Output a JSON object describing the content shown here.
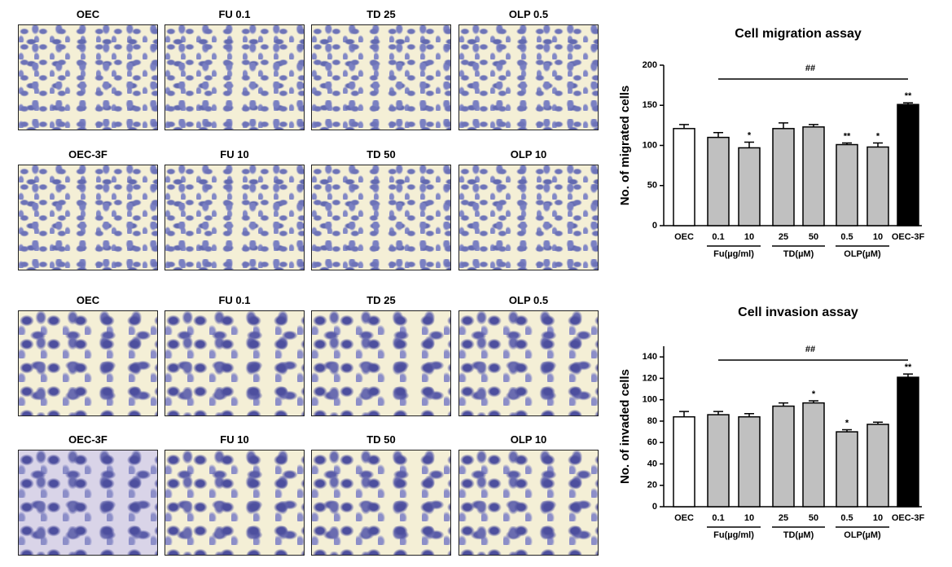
{
  "micrographs": {
    "migration": [
      "OEC",
      "FU 0.1",
      "TD 25",
      "OLP 0.5",
      "OEC-3F",
      "FU 10",
      "TD 50",
      "OLP 10"
    ],
    "invasion": [
      "OEC",
      "FU 0.1",
      "TD 25",
      "OLP 0.5",
      "OEC-3F",
      "FU 10",
      "TD 50",
      "OLP 10"
    ]
  },
  "chart_data": [
    {
      "type": "bar",
      "title": "Cell migration assay",
      "y_label": "No. of migrated cells",
      "categories": [
        "OEC",
        "0.1",
        "10",
        "25",
        "50",
        "0.5",
        "10",
        "OEC-3F"
      ],
      "values": [
        121,
        110,
        97,
        121,
        123,
        101,
        98,
        151
      ],
      "errors": [
        5,
        6,
        7,
        7,
        3,
        2,
        5,
        2
      ],
      "stars": [
        null,
        null,
        "*",
        null,
        null,
        "**",
        "*",
        "**"
      ],
      "colors": [
        "#ffffff",
        "#c0c0c0",
        "#c0c0c0",
        "#c0c0c0",
        "#c0c0c0",
        "#c0c0c0",
        "#c0c0c0",
        "#000000"
      ],
      "group_labels": [
        "Fu(µg/ml)",
        "TD(µM)",
        "OLP(µM)"
      ],
      "significance": "##",
      "ylim": [
        0,
        200
      ],
      "yticks": [
        0,
        50,
        100,
        150,
        200
      ]
    },
    {
      "type": "bar",
      "title": "Cell invasion assay",
      "y_label": "No. of invaded cells",
      "categories": [
        "OEC",
        "0.1",
        "10",
        "25",
        "50",
        "0.5",
        "10",
        "OEC-3F"
      ],
      "values": [
        84,
        86,
        84,
        94,
        97,
        70,
        77,
        121
      ],
      "errors": [
        5,
        3,
        3,
        3,
        2,
        2,
        2,
        3
      ],
      "stars": [
        null,
        null,
        null,
        null,
        "*",
        "*",
        null,
        "**"
      ],
      "colors": [
        "#ffffff",
        "#c0c0c0",
        "#c0c0c0",
        "#c0c0c0",
        "#c0c0c0",
        "#c0c0c0",
        "#c0c0c0",
        "#000000"
      ],
      "group_labels": [
        "Fu(µg/ml)",
        "TD(µM)",
        "OLP(µM)"
      ],
      "significance": "##",
      "ylim": [
        0,
        150
      ],
      "yticks": [
        0,
        20,
        40,
        60,
        80,
        100,
        120,
        140
      ]
    }
  ]
}
